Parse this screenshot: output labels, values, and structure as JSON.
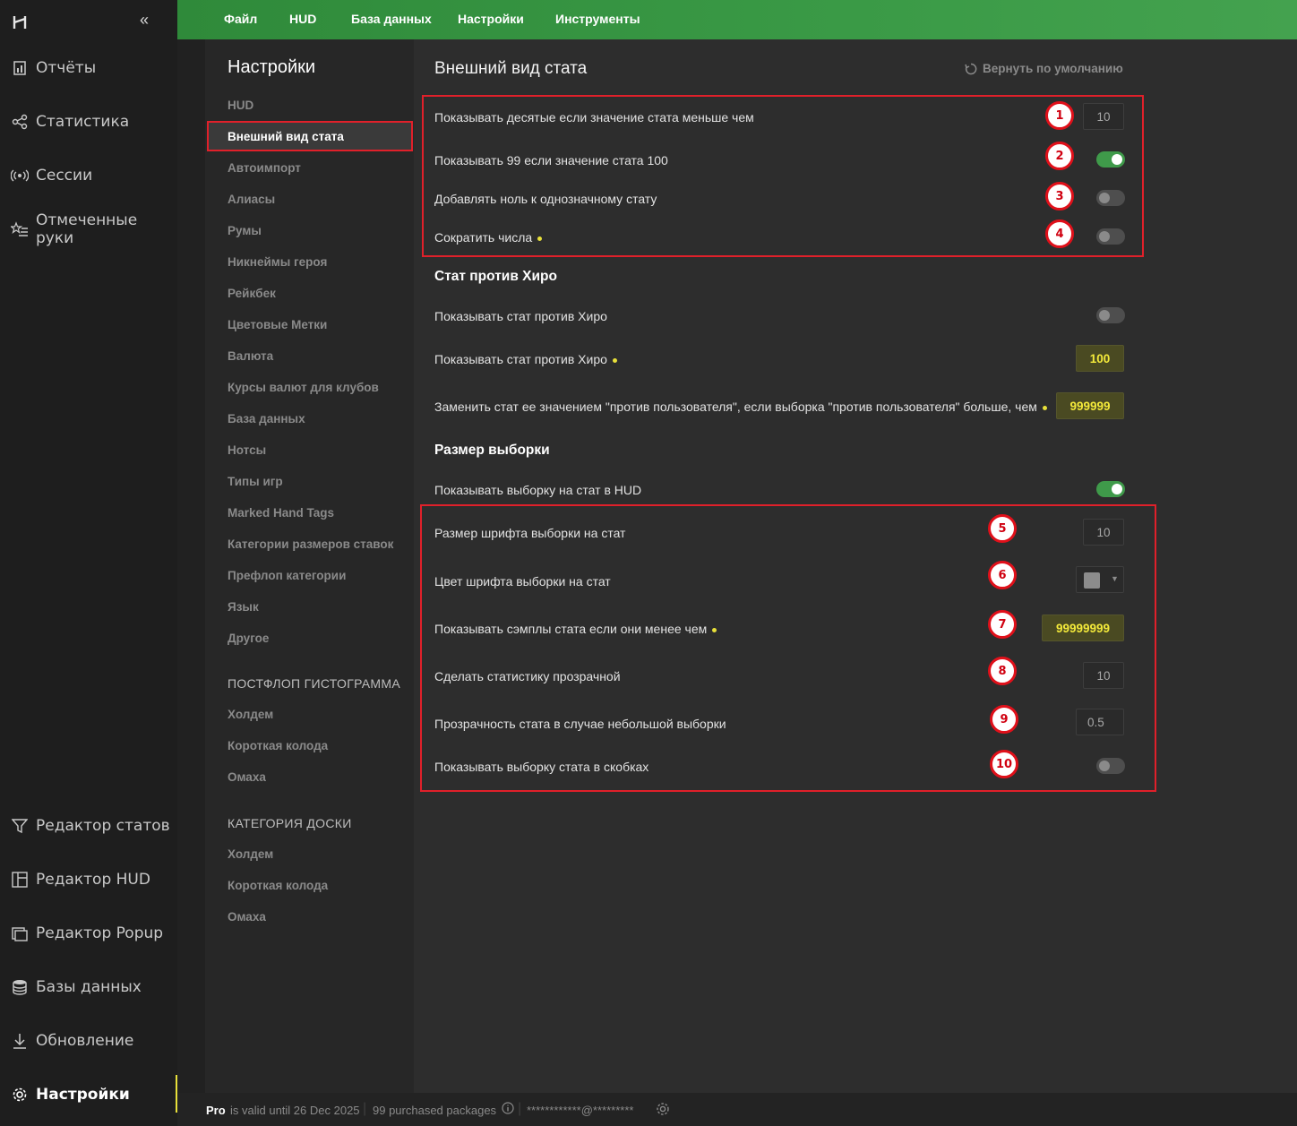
{
  "sidebar": {
    "collapse_icon": "«",
    "items": [
      {
        "label": "Отчёты",
        "icon": "report-icon"
      },
      {
        "label": "Статистика",
        "icon": "share-nodes-icon"
      },
      {
        "label": "Сессии",
        "icon": "broadcast-icon"
      },
      {
        "label": "Отмеченные руки",
        "icon": "star-list-icon"
      }
    ],
    "bottom_items": [
      {
        "label": "Редактор статов",
        "icon": "filter-icon"
      },
      {
        "label": "Редактор HUD",
        "icon": "layout-icon"
      },
      {
        "label": "Редактор Popup",
        "icon": "popup-icon"
      },
      {
        "label": "Базы данных",
        "icon": "database-icon"
      },
      {
        "label": "Обновление",
        "icon": "download-icon"
      },
      {
        "label": "Настройки",
        "icon": "gear-icon"
      }
    ],
    "active_color": "#e8e03a"
  },
  "menubar": {
    "items": [
      "Файл",
      "HUD",
      "База данных",
      "Настройки",
      "Инструменты"
    ],
    "color": "#3a9a46"
  },
  "settings_nav": {
    "title": "Настройки",
    "items": [
      "HUD",
      "Внешний вид стата",
      "Автоимпорт",
      "Алиасы",
      "Румы",
      "Никнеймы героя",
      "Рейкбек",
      "Цветовые Метки",
      "Валюта",
      "Курсы валют для клубов",
      "База данных",
      "Нотсы",
      "Типы игр",
      "Marked Hand Tags",
      "Категории размеров ставок",
      "Префлоп категории",
      "Язык",
      "Другое"
    ],
    "selected": "Внешний вид стата",
    "section1": {
      "title": "ПОСТФЛОП ГИСТОГРАММА",
      "items": [
        "Холдем",
        "Короткая колода",
        "Омаха"
      ]
    },
    "section2": {
      "title": "КАТЕГОРИЯ ДОСКИ",
      "items": [
        "Холдем",
        "Короткая колода",
        "Омаха"
      ]
    }
  },
  "content": {
    "title": "Внешний вид стата",
    "reset_label": "Вернуть по умолчанию",
    "rows1": [
      {
        "label": "Показывать десятые если значение стата меньше чем",
        "value": "10",
        "badge": "1"
      },
      {
        "label": "Показывать 99 если значение стата 100",
        "toggle": true,
        "badge": "2"
      },
      {
        "label": "Добавлять ноль к однозначному стату",
        "toggle": false,
        "badge": "3"
      },
      {
        "label": "Сократить числа",
        "toggle": false,
        "badge": "4"
      }
    ],
    "section_vs_hero": "Стат против Хиро",
    "rows2": [
      {
        "label": "Показывать стат против Хиро",
        "toggle": false
      },
      {
        "label": "Показывать стат против Хиро",
        "value": "100"
      },
      {
        "label": "Заменить стат ее значением \"против пользователя\", если выборка \"против пользователя\" больше, чем",
        "value": "999999"
      }
    ],
    "section_sample": "Размер выборки",
    "sample_toggle_label": "Показывать выборку на стат в HUD",
    "sample_toggle": true,
    "rows3": [
      {
        "label": "Размер шрифта выборки на стат",
        "value": "10",
        "badge": "5"
      },
      {
        "label": "Цвет шрифта выборки на стат",
        "color": "#8c8c8c",
        "badge": "6"
      },
      {
        "label": "Показывать сэмплы стата если они менее чем",
        "value": "99999999",
        "badge": "7"
      },
      {
        "label": "Сделать статистику прозрачной",
        "value": "10",
        "badge": "8"
      },
      {
        "label": "Прозрачность стата в случае небольшой выборки",
        "value": "0.5",
        "badge": "9"
      },
      {
        "label": "Показывать выборку стата в скобках",
        "toggle": false,
        "badge": "10"
      }
    ]
  },
  "statusbar": {
    "plan": "Pro",
    "valid": "is valid until 26 Dec 2025",
    "packages": "99 purchased packages",
    "email": "************@*********"
  }
}
